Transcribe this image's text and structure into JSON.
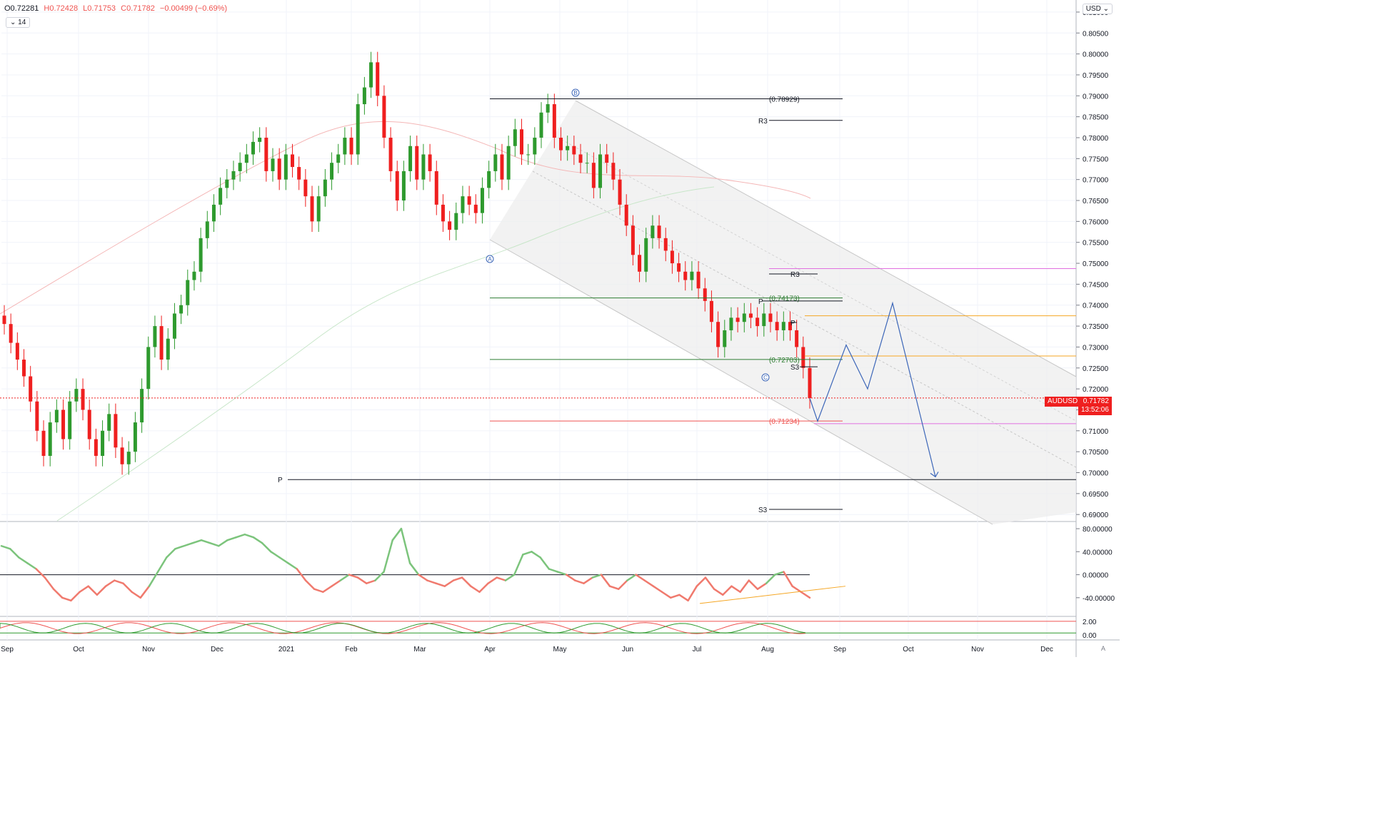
{
  "header": {
    "open": "O0.72281",
    "high": "H0.72428",
    "low": "L0.71753",
    "close": "C0.71782",
    "change": "−0.00499 (−0.69%)",
    "interval": "14",
    "currency": "USD"
  },
  "price_tag": {
    "symbol": "AUDUSD",
    "price": "0.71782",
    "countdown": "13:52:06"
  },
  "scale_button": "A",
  "colors": {
    "up": "#2e9a2e",
    "down": "#ef1f1f",
    "channel": "#e6e6e6",
    "wave": "#3c66b8",
    "magenta": "#e070e0",
    "orange": "#f5a623",
    "green_level": "#2e7d32",
    "red_level": "#ef5350"
  },
  "chart_data": [
    {
      "type": "candlestick",
      "symbol": "AUDUSD",
      "y_ticks": [
        "0.81000",
        "0.80500",
        "0.80000",
        "0.79500",
        "0.79000",
        "0.78500",
        "0.78000",
        "0.77500",
        "0.77000",
        "0.76500",
        "0.76000",
        "0.75500",
        "0.75000",
        "0.74500",
        "0.74000",
        "0.73500",
        "0.73000",
        "0.72500",
        "0.72000",
        "0.71500",
        "0.71000",
        "0.70500",
        "0.70000",
        "0.69500",
        "0.69000"
      ],
      "ylim": [
        0.6885,
        0.8122
      ],
      "x_ticks": [
        "Sep",
        "Oct",
        "Nov",
        "Dec",
        "2021",
        "Feb",
        "Mar",
        "Apr",
        "May",
        "Jun",
        "Jul",
        "Aug",
        "Sep",
        "Oct",
        "Nov",
        "Dec"
      ],
      "candle_path_close": [
        0.7355,
        0.731,
        0.727,
        0.723,
        0.717,
        0.71,
        0.704,
        0.712,
        0.715,
        0.708,
        0.717,
        0.72,
        0.715,
        0.708,
        0.704,
        0.71,
        0.714,
        0.706,
        0.702,
        0.705,
        0.712,
        0.72,
        0.73,
        0.735,
        0.727,
        0.732,
        0.738,
        0.74,
        0.746,
        0.748,
        0.756,
        0.76,
        0.764,
        0.768,
        0.77,
        0.772,
        0.774,
        0.776,
        0.779,
        0.78,
        0.772,
        0.775,
        0.77,
        0.776,
        0.773,
        0.77,
        0.766,
        0.76,
        0.766,
        0.77,
        0.774,
        0.776,
        0.78,
        0.776,
        0.788,
        0.792,
        0.798,
        0.79,
        0.78,
        0.772,
        0.765,
        0.772,
        0.778,
        0.77,
        0.776,
        0.772,
        0.764,
        0.76,
        0.758,
        0.762,
        0.766,
        0.764,
        0.762,
        0.768,
        0.772,
        0.776,
        0.77,
        0.778,
        0.782,
        0.776,
        0.776,
        0.78,
        0.786,
        0.788,
        0.78,
        0.777,
        0.778,
        0.776,
        0.774,
        0.774,
        0.768,
        0.776,
        0.774,
        0.77,
        0.764,
        0.759,
        0.752,
        0.748,
        0.756,
        0.759,
        0.756,
        0.753,
        0.75,
        0.748,
        0.746,
        0.748,
        0.744,
        0.741,
        0.736,
        0.73,
        0.734,
        0.737,
        0.736,
        0.738,
        0.737,
        0.735,
        0.738,
        0.736,
        0.734,
        0.736,
        0.734,
        0.73,
        0.725,
        0.7178
      ]
    },
    {
      "type": "annotations",
      "wave_labels": [
        "A",
        "B",
        "C"
      ],
      "levels": [
        {
          "label": "(0.78929)",
          "value": 0.78929
        },
        {
          "label": "(0.74173)",
          "value": 0.74173
        },
        {
          "label": "(0.72703)",
          "value": 0.72703
        },
        {
          "label": "(0.71234)",
          "value": 0.71234
        }
      ],
      "pivots": [
        {
          "label": "R3",
          "value": 0.78412
        },
        {
          "label": "R3",
          "value": 0.74745
        },
        {
          "label": "P",
          "value": 0.74101
        },
        {
          "label": "P",
          "value": 0.73587
        },
        {
          "label": "S3",
          "value": 0.72528
        },
        {
          "label": "P",
          "value": 0.69834
        },
        {
          "label": "S3",
          "value": 0.69122
        }
      ],
      "projection_path": [
        0.7123,
        0.7305,
        0.72,
        0.7405,
        0.699
      ]
    },
    {
      "type": "line",
      "name": "oscillator 1",
      "y_ticks": [
        "80.00000",
        "40.00000",
        "0.00000",
        "-40.00000"
      ],
      "ylim": [
        -70,
        90
      ],
      "values": [
        50,
        45,
        30,
        20,
        10,
        -5,
        -25,
        -40,
        -45,
        -30,
        -20,
        -35,
        -20,
        -10,
        -15,
        -30,
        -40,
        -20,
        5,
        30,
        45,
        50,
        55,
        60,
        55,
        50,
        60,
        65,
        70,
        65,
        55,
        40,
        30,
        20,
        10,
        -10,
        -25,
        -30,
        -20,
        -10,
        0,
        -5,
        -15,
        -10,
        5,
        60,
        80,
        20,
        0,
        -10,
        -15,
        -20,
        -10,
        -5,
        -20,
        -30,
        -15,
        -5,
        -10,
        0,
        35,
        40,
        30,
        10,
        5,
        0,
        -10,
        -15,
        -5,
        0,
        -20,
        -25,
        -10,
        0,
        -10,
        -20,
        -30,
        -40,
        -35,
        -45,
        -20,
        -5,
        -25,
        -35,
        -20,
        -30,
        -10,
        -25,
        -15,
        0,
        5,
        -20,
        -30,
        -40
      ]
    },
    {
      "type": "line",
      "name": "oscillator 2",
      "y_ticks": [
        "2.00",
        "0.00"
      ],
      "ylim": [
        -0.5,
        2.5
      ]
    }
  ]
}
